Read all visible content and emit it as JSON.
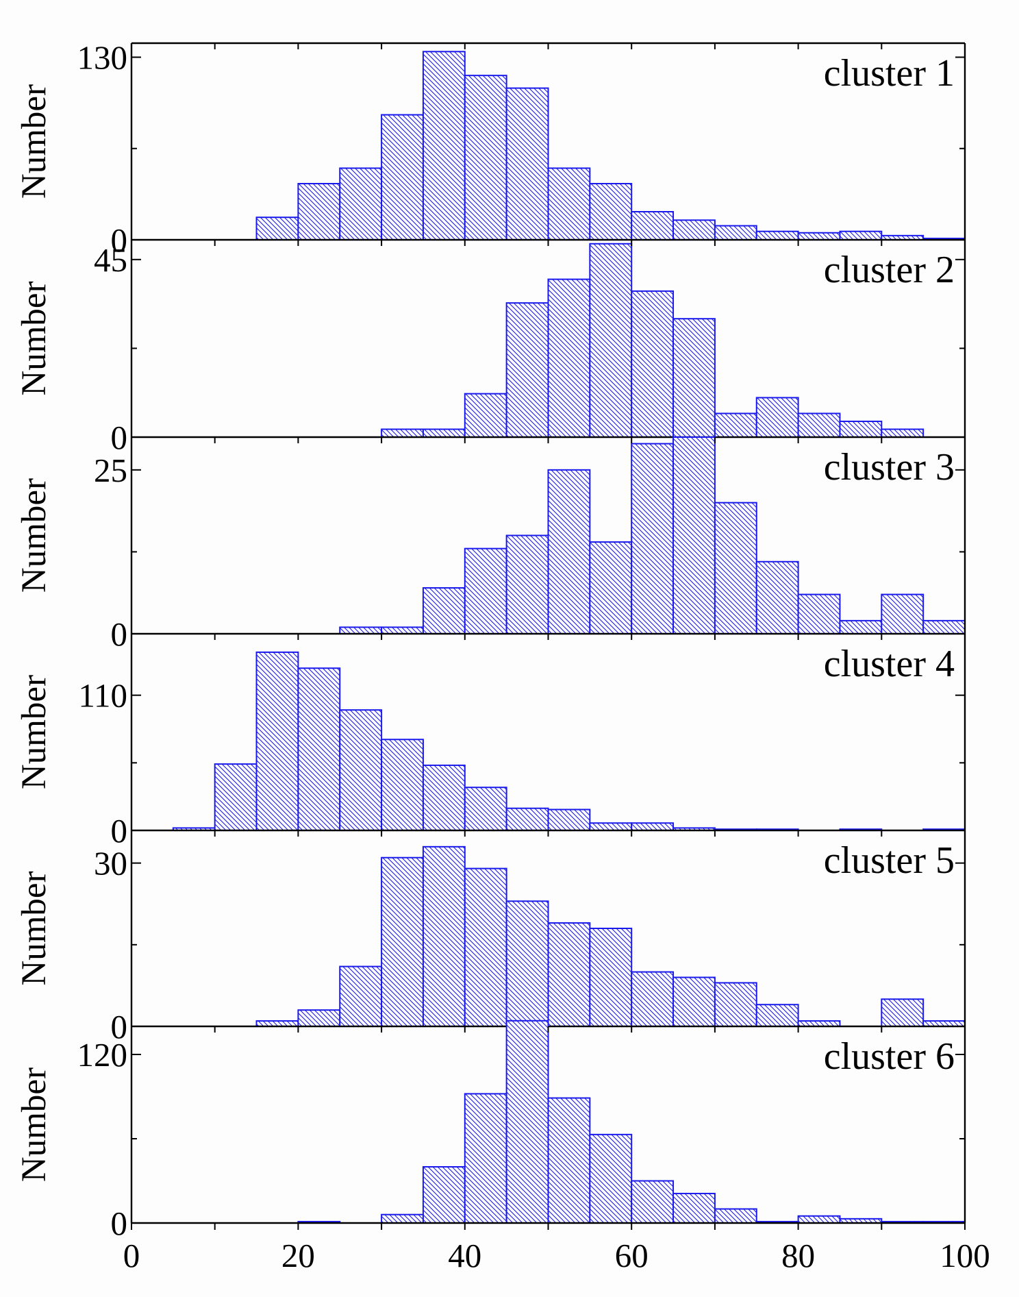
{
  "chart_data": {
    "type": "bar",
    "layout": "stacked-panels",
    "bin_edges": [
      5,
      10,
      15,
      20,
      25,
      30,
      35,
      40,
      45,
      50,
      55,
      60,
      65,
      70,
      75,
      80,
      85,
      90,
      95,
      100
    ],
    "xlim": [
      0,
      100
    ],
    "x_ticks": [
      "0",
      "20",
      "40",
      "60",
      "80",
      "100"
    ],
    "ylabel": "Number",
    "fill_color": "#1a1aee",
    "panels": [
      {
        "label": "cluster 1",
        "ylim": [
          0,
          140
        ],
        "y_ticks": [
          {
            "value": 0,
            "label": "0"
          },
          {
            "value": 130,
            "label": "130"
          }
        ],
        "values": [
          0,
          0,
          16,
          40,
          51,
          89,
          134,
          117,
          108,
          51,
          40,
          20,
          14,
          10,
          6,
          5,
          6,
          3,
          1
        ]
      },
      {
        "label": "cluster 2",
        "ylim": [
          0,
          50
        ],
        "y_ticks": [
          {
            "value": 0,
            "label": "0"
          },
          {
            "value": 45,
            "label": "45"
          }
        ],
        "values": [
          0,
          0,
          0,
          0,
          0,
          2,
          2,
          11,
          34,
          40,
          49,
          37,
          30,
          6,
          10,
          6,
          4,
          2,
          0
        ]
      },
      {
        "label": "cluster 3",
        "ylim": [
          0,
          30
        ],
        "y_ticks": [
          {
            "value": 0,
            "label": "0"
          },
          {
            "value": 25,
            "label": "25"
          }
        ],
        "values": [
          0,
          0,
          0,
          0,
          1,
          1,
          7,
          13,
          15,
          25,
          14,
          29,
          30,
          20,
          11,
          6,
          2,
          6,
          2
        ]
      },
      {
        "label": "cluster 4",
        "ylim": [
          0,
          160
        ],
        "y_ticks": [
          {
            "value": 0,
            "label": "0"
          },
          {
            "value": 110,
            "label": "110"
          }
        ],
        "values": [
          2,
          54,
          145,
          132,
          98,
          74,
          53,
          35,
          18,
          17,
          6,
          6,
          2,
          1,
          1,
          0,
          1,
          0,
          1
        ]
      },
      {
        "label": "cluster 5",
        "ylim": [
          0,
          36
        ],
        "y_ticks": [
          {
            "value": 0,
            "label": "0"
          },
          {
            "value": 30,
            "label": "30"
          }
        ],
        "values": [
          0,
          0,
          1,
          3,
          11,
          31,
          33,
          29,
          23,
          19,
          18,
          10,
          9,
          8,
          4,
          1,
          0,
          5,
          1
        ]
      },
      {
        "label": "cluster 6",
        "ylim": [
          0,
          140
        ],
        "y_ticks": [
          {
            "value": 0,
            "label": "0"
          },
          {
            "value": 120,
            "label": "120"
          }
        ],
        "values": [
          0,
          0,
          0,
          1,
          0,
          6,
          40,
          92,
          144,
          89,
          63,
          30,
          21,
          10,
          1,
          5,
          3,
          1,
          1
        ]
      }
    ]
  }
}
